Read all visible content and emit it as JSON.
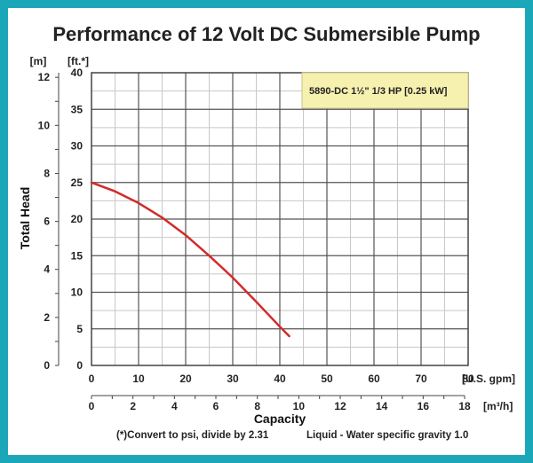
{
  "chart_data": {
    "type": "line",
    "title": "Performance of 12 Volt DC Submersible Pump",
    "ylabel": "Total Head",
    "xlabel": "Capacity",
    "x_unit_primary": "[U.S. gpm]",
    "x_unit_secondary": "[m³/h]",
    "y_unit_primary": "[ft.*]",
    "y_unit_secondary": "[m]",
    "x_primary_ticks": [
      "0",
      "10",
      "20",
      "30",
      "40",
      "50",
      "60",
      "70",
      "80"
    ],
    "x_secondary_ticks": [
      "0",
      "2",
      "4",
      "6",
      "8",
      "10",
      "12",
      "14",
      "16",
      "18"
    ],
    "y_primary_ticks": [
      "0",
      "5",
      "10",
      "15",
      "20",
      "25",
      "30",
      "35",
      "40"
    ],
    "y_secondary_ticks": [
      "0",
      "2",
      "4",
      "6",
      "8",
      "10",
      "12"
    ],
    "xlim": [
      0,
      80
    ],
    "ylim": [
      0,
      40
    ],
    "grid": true,
    "legend_position": "top-right",
    "series": [
      {
        "name": "5890-DC 1½\" 1/3 HP [0.25 kW]",
        "color": "#d42a2a",
        "x": [
          0,
          5,
          10,
          15,
          20,
          25,
          30,
          35,
          40,
          42
        ],
        "y": [
          25.0,
          23.8,
          22.2,
          20.2,
          17.8,
          15.0,
          12.0,
          8.7,
          5.3,
          4.0
        ]
      }
    ],
    "footnotes": [
      "(*)Convert to psi, divide by 2.31",
      "Liquid - Water specific gravity 1.0"
    ]
  },
  "colors": {
    "frame": "#1aa7b8",
    "legend_bg": "#f7f1b0",
    "grid": "#555555",
    "minor_grid": "#c8c8c8"
  }
}
